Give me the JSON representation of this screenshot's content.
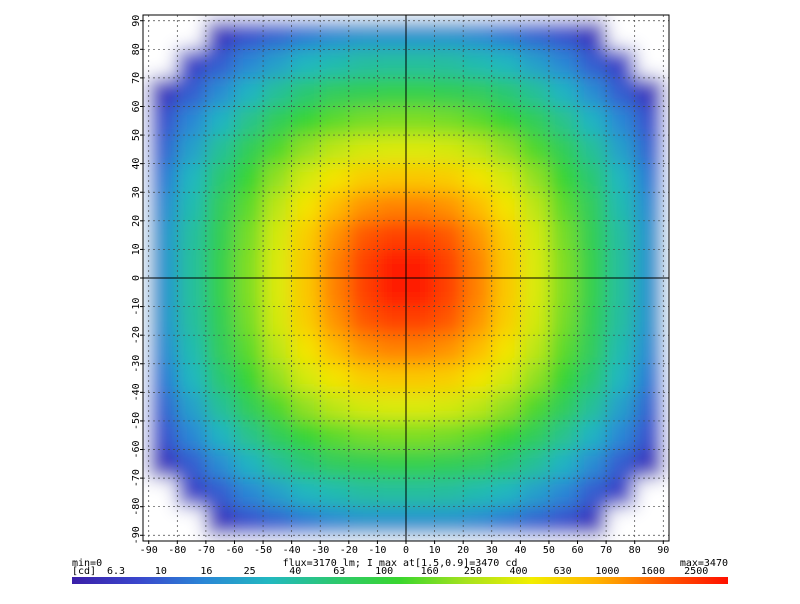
{
  "chart_data": {
    "type": "heatmap",
    "x": [
      -85,
      -75,
      -65,
      -55,
      -45,
      -35,
      -25,
      -15,
      -5,
      5,
      15,
      25,
      35,
      45,
      55,
      65,
      75,
      85
    ],
    "y": [
      85,
      75,
      65,
      55,
      45,
      35,
      25,
      15,
      5,
      -5,
      -15,
      -25,
      -35,
      -45,
      -55,
      -65,
      -75,
      -85
    ],
    "z": [
      [
        0,
        2,
        6,
        9,
        11,
        14,
        17,
        19,
        19,
        19,
        19,
        17,
        14,
        11,
        9,
        6,
        2,
        0
      ],
      [
        2,
        7,
        10,
        16,
        22,
        30,
        35,
        40,
        41,
        41,
        40,
        35,
        30,
        22,
        16,
        10,
        7,
        2
      ],
      [
        6,
        10,
        17,
        29,
        43,
        59,
        74,
        81,
        87,
        87,
        81,
        74,
        59,
        43,
        29,
        17,
        10,
        6
      ],
      [
        9,
        16,
        29,
        48,
        78,
        112,
        145,
        170,
        180,
        180,
        170,
        145,
        112,
        78,
        48,
        29,
        16,
        9
      ],
      [
        11,
        22,
        43,
        78,
        135,
        205,
        285,
        350,
        370,
        370,
        350,
        285,
        205,
        135,
        78,
        43,
        22,
        11
      ],
      [
        14,
        30,
        59,
        112,
        205,
        350,
        510,
        660,
        720,
        720,
        660,
        510,
        350,
        205,
        112,
        59,
        30,
        14
      ],
      [
        17,
        35,
        74,
        145,
        285,
        510,
        830,
        1150,
        1320,
        1320,
        1150,
        830,
        510,
        285,
        145,
        74,
        35,
        17
      ],
      [
        19,
        40,
        81,
        170,
        350,
        660,
        1150,
        1780,
        2190,
        2190,
        1780,
        1150,
        660,
        350,
        170,
        81,
        40,
        19
      ],
      [
        19,
        41,
        87,
        180,
        370,
        720,
        1320,
        2190,
        3020,
        3020,
        2190,
        1320,
        720,
        370,
        180,
        87,
        41,
        19
      ],
      [
        19,
        41,
        87,
        180,
        370,
        720,
        1320,
        2190,
        3020,
        3020,
        2190,
        1320,
        720,
        370,
        180,
        87,
        41,
        19
      ],
      [
        19,
        40,
        81,
        170,
        350,
        660,
        1150,
        1780,
        2190,
        2190,
        1780,
        1150,
        660,
        350,
        170,
        81,
        40,
        19
      ],
      [
        17,
        35,
        74,
        145,
        285,
        510,
        830,
        1150,
        1320,
        1320,
        1150,
        830,
        510,
        285,
        145,
        74,
        35,
        17
      ],
      [
        14,
        30,
        59,
        112,
        205,
        350,
        510,
        660,
        720,
        720,
        660,
        510,
        350,
        205,
        112,
        59,
        30,
        14
      ],
      [
        11,
        22,
        43,
        78,
        135,
        205,
        285,
        350,
        370,
        370,
        350,
        285,
        205,
        135,
        78,
        43,
        22,
        11
      ],
      [
        9,
        16,
        29,
        48,
        78,
        112,
        145,
        170,
        180,
        180,
        170,
        145,
        112,
        78,
        48,
        29,
        16,
        9
      ],
      [
        6,
        10,
        17,
        29,
        43,
        59,
        74,
        81,
        87,
        87,
        81,
        74,
        59,
        43,
        29,
        17,
        10,
        6
      ],
      [
        2,
        7,
        10,
        16,
        22,
        30,
        35,
        40,
        41,
        41,
        40,
        35,
        30,
        22,
        16,
        10,
        7,
        2
      ],
      [
        0,
        2,
        6,
        9,
        11,
        14,
        17,
        19,
        19,
        19,
        19,
        17,
        14,
        11,
        9,
        6,
        2,
        0
      ]
    ],
    "xlim": [
      -92,
      92
    ],
    "ylim": [
      -92,
      92
    ],
    "xticks": [
      -90,
      -80,
      -70,
      -60,
      -50,
      -40,
      -30,
      -20,
      -10,
      0,
      10,
      20,
      30,
      40,
      50,
      60,
      70,
      80,
      90
    ],
    "yticks": [
      -90,
      -80,
      -70,
      -60,
      -50,
      -40,
      -30,
      -20,
      -10,
      0,
      10,
      20,
      30,
      40,
      50,
      60,
      70,
      80,
      90
    ],
    "grid": true,
    "clim": [
      4,
      3470
    ],
    "log_color_scale": true,
    "colormap": [
      "#3a1fa8",
      "#3a46cc",
      "#2a86d6",
      "#22b8c0",
      "#2cc870",
      "#3ad62e",
      "#a6e21e",
      "#f2ee00",
      "#ffb400",
      "#ff5a00",
      "#ff1000"
    ],
    "colorbar_unit": "[cd]",
    "colorbar_ticks": [
      6.3,
      10,
      16,
      25,
      40,
      63,
      100,
      160,
      250,
      400,
      630,
      1000,
      1600,
      2500
    ],
    "min_label": "min=0",
    "max_label": "max=3470",
    "footer": "flux=3170 lm; I max at[1.5,0.9]=3470 cd"
  }
}
